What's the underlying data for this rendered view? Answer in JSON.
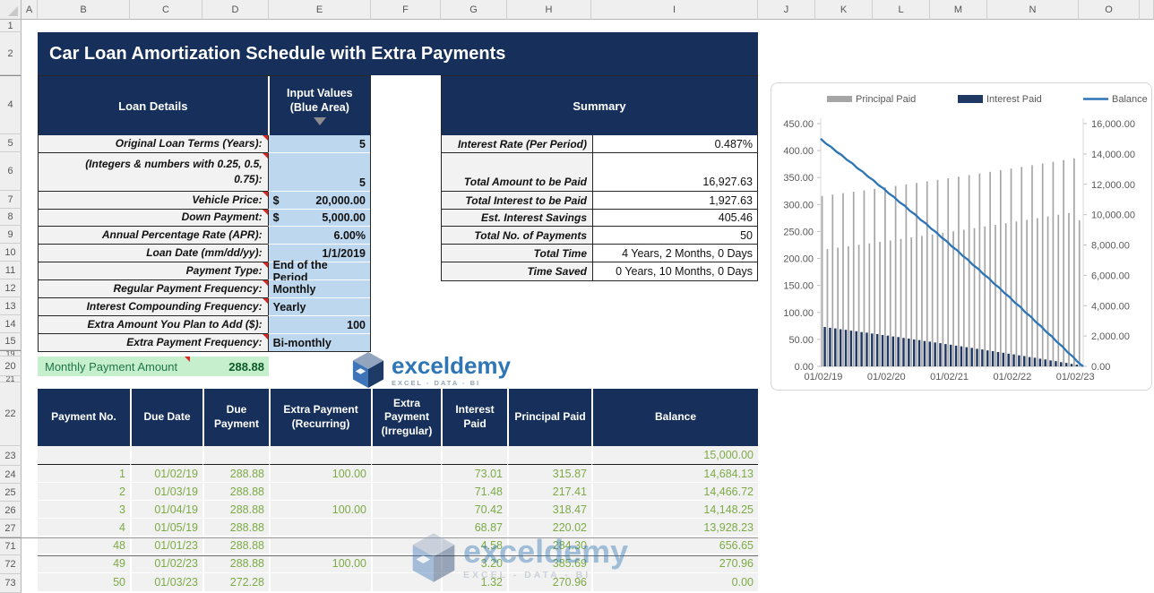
{
  "grid": {
    "column_labels": [
      "A",
      "B",
      "C",
      "D",
      "E",
      "F",
      "G",
      "H",
      "I",
      "J",
      "K",
      "L",
      "M",
      "N",
      "O"
    ],
    "row_labels": [
      "1",
      "2",
      "4",
      "5",
      "6",
      "7",
      "8",
      "9",
      "10",
      "11",
      "12",
      "13",
      "14",
      "15",
      "19",
      "20",
      "21",
      "22",
      "23",
      "24",
      "25",
      "26",
      "27",
      "71",
      "72",
      "73"
    ]
  },
  "title": "Car Loan Amortization Schedule with Extra Payments",
  "loan_details": {
    "header": "Loan Details",
    "input_header": {
      "line1": "Input Values",
      "line2": "(Blue Area)"
    },
    "rows": [
      {
        "label": "Original Loan Terms (Years):",
        "value": "5",
        "align": "right",
        "flag": true
      },
      {
        "label": "(Integers & numbers with 0.25, 0.5,",
        "label2": "0.75):",
        "value": "5",
        "align": "right",
        "flag": true,
        "tall": true
      },
      {
        "label": "Vehicle Price:",
        "prefix": "$",
        "value": "20,000.00",
        "align": "right",
        "flag": true
      },
      {
        "label": "Down Payment:",
        "prefix": "$",
        "value": "5,000.00",
        "align": "right",
        "flag": true
      },
      {
        "label": "Annual Percentage Rate (APR):",
        "value": "6.00%",
        "align": "right",
        "flag": false
      },
      {
        "label": "Loan Date (mm/dd/yy):",
        "value": "1/1/2019",
        "align": "right",
        "flag": false
      },
      {
        "label": "Payment Type:",
        "value": "End of the Period",
        "align": "left",
        "flag": true
      },
      {
        "label": "Regular Payment Frequency:",
        "value": "Monthly",
        "align": "left",
        "flag": true
      },
      {
        "label": "Interest Compounding Frequency:",
        "value": "Yearly",
        "align": "left",
        "flag": true
      },
      {
        "label": "Extra Amount You Plan to Add ($):",
        "value": "100",
        "align": "right",
        "flag": false
      },
      {
        "label": "Extra Payment Frequency:",
        "value": "Bi-monthly",
        "align": "left",
        "flag": true
      }
    ]
  },
  "summary": {
    "header": "Summary",
    "rows": [
      {
        "label": "Interest Rate (Per Period)",
        "value": "0.487%"
      },
      {
        "label": "Total Amount to be Paid",
        "value": "16,927.63",
        "tall": true
      },
      {
        "label": "Total Interest to be Paid",
        "value": "1,927.63"
      },
      {
        "label": "Est. Interest Savings",
        "value": "405.46"
      },
      {
        "label": "Total No. of Payments",
        "value": "50"
      },
      {
        "label": "Total Time",
        "value": "4 Years, 2 Months, 0 Days"
      },
      {
        "label": "Time Saved",
        "value": "0 Years, 10 Months, 0 Days"
      }
    ]
  },
  "monthly_payment": {
    "label": "Monthly Payment Amount",
    "value": "288.88"
  },
  "logo": {
    "name": "exceldemy",
    "tagline": "EXCEL - DATA - BI"
  },
  "payment_table": {
    "headers": [
      "Payment No.",
      "Due Date",
      "Due Payment",
      "Extra Payment (Recurring)",
      "Extra Payment (Irregular)",
      "Interest Paid",
      "Principal Paid",
      "Balance"
    ],
    "opening_balance": "15,000.00",
    "rows": [
      [
        "1",
        "01/02/19",
        "288.88",
        "100.00",
        "",
        "73.01",
        "315.87",
        "14,684.13"
      ],
      [
        "2",
        "01/03/19",
        "288.88",
        "",
        "",
        "71.48",
        "217.41",
        "14,466.72"
      ],
      [
        "3",
        "01/04/19",
        "288.88",
        "100.00",
        "",
        "70.42",
        "318.47",
        "14,148.25"
      ],
      [
        "4",
        "01/05/19",
        "288.88",
        "",
        "",
        "68.87",
        "220.02",
        "13,928.23"
      ],
      [
        "48",
        "01/01/23",
        "288.88",
        "",
        "",
        "4.58",
        "284.30",
        "656.65"
      ],
      [
        "49",
        "01/02/23",
        "288.88",
        "100.00",
        "",
        "3.20",
        "385.69",
        "270.96"
      ],
      [
        "50",
        "01/03/23",
        "272.28",
        "",
        "",
        "1.32",
        "270.96",
        "0.00"
      ]
    ]
  },
  "chart_data": {
    "type": "combo",
    "title": "",
    "legend": [
      {
        "name": "Principal Paid",
        "kind": "bar",
        "color": "#A6A6A6"
      },
      {
        "name": "Interest Paid",
        "kind": "bar",
        "color": "#1F3864"
      },
      {
        "name": "Balance",
        "kind": "line",
        "color": "#2E75B6"
      }
    ],
    "left_axis": {
      "min": 0,
      "max": 450,
      "step": 50
    },
    "right_axis": {
      "min": 0,
      "max": 16000,
      "step": 2000
    },
    "x_ticks": [
      {
        "label": "01/02/19",
        "period": 1
      },
      {
        "label": "01/02/20",
        "period": 13
      },
      {
        "label": "01/02/21",
        "period": 25
      },
      {
        "label": "01/02/22",
        "period": 37
      },
      {
        "label": "01/02/23",
        "period": 49
      }
    ],
    "balance_start": 15000,
    "series": {
      "principal_paid": [
        315.87,
        217.41,
        318.47,
        220.02,
        321.08,
        222.64,
        323.72,
        225.3,
        326.4,
        227.99,
        329.1,
        230.7,
        331.82,
        233.44,
        334.57,
        236.2,
        337.35,
        238.99,
        340.16,
        241.81,
        342.99,
        244.66,
        345.85,
        247.53,
        348.74,
        250.44,
        351.66,
        253.37,
        354.6,
        256.33,
        357.57,
        259.32,
        360.58,
        262.33,
        363.61,
        265.38,
        366.67,
        268.46,
        369.76,
        271.56,
        372.89,
        274.7,
        376.04,
        277.87,
        379.22,
        281.07,
        382.44,
        284.3,
        385.69,
        270.96
      ],
      "interest_paid": [
        73.01,
        71.48,
        70.42,
        68.87,
        67.8,
        66.24,
        65.16,
        63.58,
        62.48,
        60.89,
        59.78,
        58.18,
        57.06,
        55.44,
        54.31,
        52.68,
        51.53,
        49.89,
        48.72,
        47.07,
        45.89,
        44.22,
        43.03,
        41.35,
        40.14,
        38.44,
        37.22,
        35.51,
        34.28,
        32.55,
        31.31,
        29.56,
        28.3,
        26.55,
        25.27,
        23.5,
        22.21,
        20.42,
        19.12,
        17.32,
        15.99,
        14.18,
        12.84,
        11.01,
        9.66,
        7.81,
        6.44,
        4.58,
        3.2,
        1.32
      ],
      "balance": [
        14684.13,
        14466.72,
        14148.25,
        13928.23,
        13607.15,
        13384.51,
        13060.79,
        12835.49,
        12509.09,
        12281.1,
        11952.0,
        11721.3,
        11389.48,
        11156.04,
        10821.47,
        10585.27,
        10247.92,
        10008.93,
        9668.77,
        9426.96,
        9083.97,
        8839.31,
        8493.46,
        8245.93,
        7897.19,
        7646.75,
        7295.09,
        7041.72,
        6687.12,
        6430.79,
        6073.22,
        5813.9,
        5453.32,
        5190.99,
        4827.38,
        4562.0,
        4195.33,
        3926.87,
        3557.11,
        3285.55,
        2912.66,
        2637.96,
        2261.92,
        1984.05,
        1604.83,
        1323.76,
        941.32,
        656.65,
        270.96,
        0.0
      ]
    }
  }
}
